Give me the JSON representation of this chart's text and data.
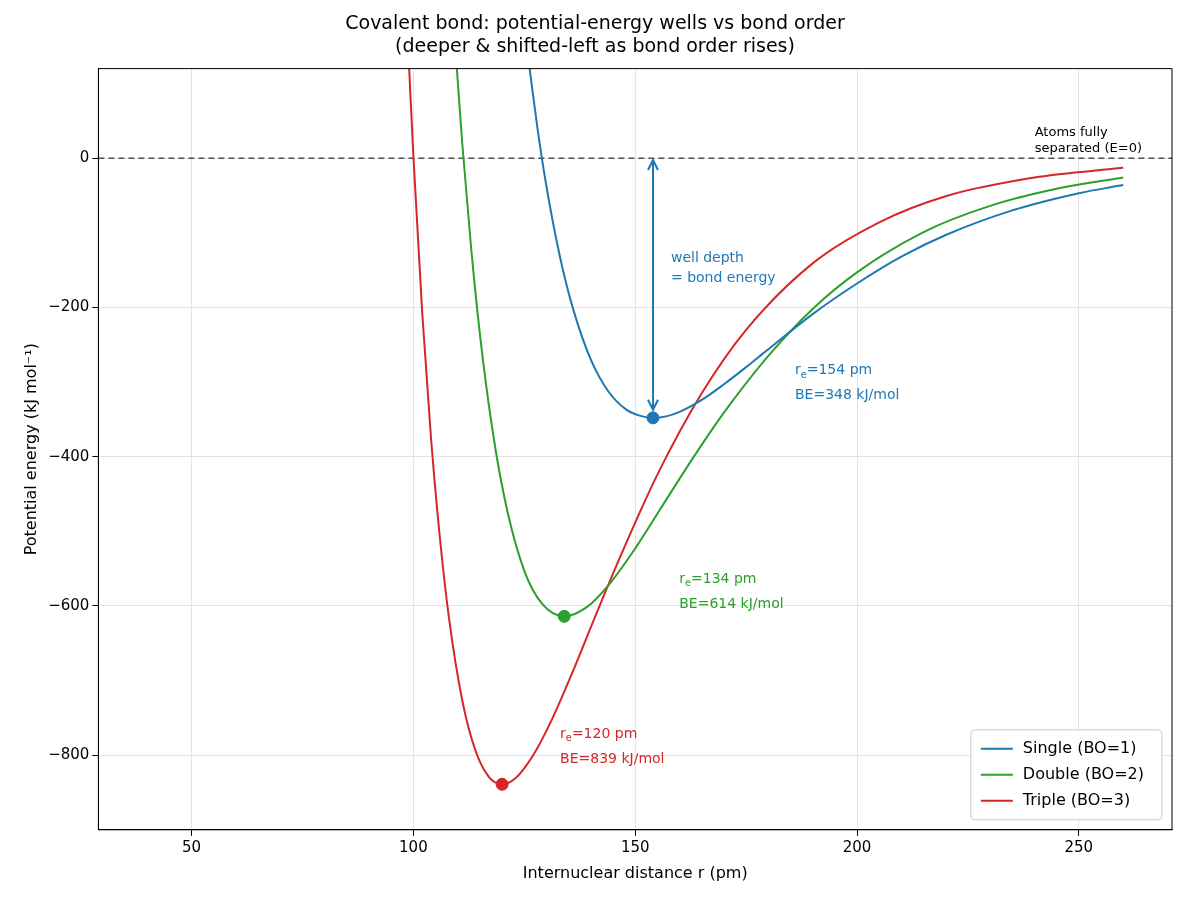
{
  "chart_data": {
    "type": "line",
    "title": "Covalent bond: potential-energy wells vs bond order\n(deeper & shifted-left as bond order rises)",
    "xlabel": "Internuclear distance r (pm)",
    "ylabel": "Potential energy (kJ mol⁻¹)",
    "xlim": [
      29,
      271
    ],
    "xticks": [
      50,
      100,
      150,
      200,
      250
    ],
    "ylim": [
      -900,
      120
    ],
    "yticks": [
      {
        "value": -800,
        "label": "−800"
      },
      {
        "value": -600,
        "label": "−600"
      },
      {
        "value": -400,
        "label": "−400"
      },
      {
        "value": -200,
        "label": "−200"
      },
      0
    ],
    "grid": true,
    "legend": "bottom right",
    "marker": "none",
    "line_style": "solid",
    "series": [
      {
        "name": "Single (BO=1)",
        "color": "#1f77b4",
        "x": [
          126.2,
          128,
          130,
          133,
          136,
          140,
          144,
          148,
          151,
          154,
          157,
          160,
          165,
          170,
          175,
          180,
          190,
          200,
          210,
          220,
          235,
          250,
          260
        ],
        "values": [
          120,
          39,
          -38,
          -131,
          -202,
          -270,
          -313,
          -337,
          -345,
          -348,
          -346,
          -340,
          -324,
          -303,
          -280,
          -256,
          -209,
          -168,
          -132,
          -103,
          -70,
          -47,
          -36
        ]
      },
      {
        "name": "Double (BO=2)",
        "color": "#2ca02c",
        "x": [
          109.8,
          111,
          113,
          115,
          118,
          121,
          125,
          129,
          134,
          139,
          144,
          150,
          156,
          163,
          170,
          180,
          190,
          200,
          215,
          230,
          245,
          260
        ],
        "values": [
          120,
          21,
          -119,
          -236,
          -371,
          -468,
          -553,
          -597,
          -614,
          -602,
          -572,
          -523,
          -467,
          -402,
          -341,
          -265,
          -202,
          -153,
          -99,
          -64,
          -41,
          -26
        ]
      },
      {
        "name": "Triple (BO=3)",
        "color": "#d62728",
        "x": [
          99.05,
          100,
          102,
          104,
          106,
          108,
          111,
          114,
          117,
          120,
          123,
          127,
          131,
          136,
          141,
          147,
          155,
          165,
          175,
          190,
          205,
          220,
          240,
          260
        ],
        "values": [
          120,
          3,
          -208,
          -377,
          -510,
          -615,
          -726,
          -794,
          -829,
          -839,
          -831,
          -800,
          -755,
          -687,
          -614,
          -529,
          -424,
          -315,
          -230,
          -141,
          -86,
          -51,
          -26,
          -13
        ]
      },
      {
        "type": "scatter",
        "marker": "circle",
        "x": [
          154,
          134,
          120
        ],
        "values": [
          -348,
          -614,
          -839
        ],
        "colors": [
          "#1f77b4",
          "#2ca02c",
          "#d62728"
        ]
      }
    ],
    "ref_lines": [
      {
        "axis": "y",
        "value": 0,
        "label": "Atoms fully\nseparated (E=0)",
        "color": "#000000",
        "line_style": "dashed"
      }
    ],
    "annotations": [
      "well depth\n= bond energy",
      "r$_{e}$=154 pm\nBE=348 kJ/mol",
      "r$_{e}$=134 pm\nBE=614 kJ/mol",
      "r$_{e}$=120 pm\nBE=839 kJ/mol"
    ]
  }
}
